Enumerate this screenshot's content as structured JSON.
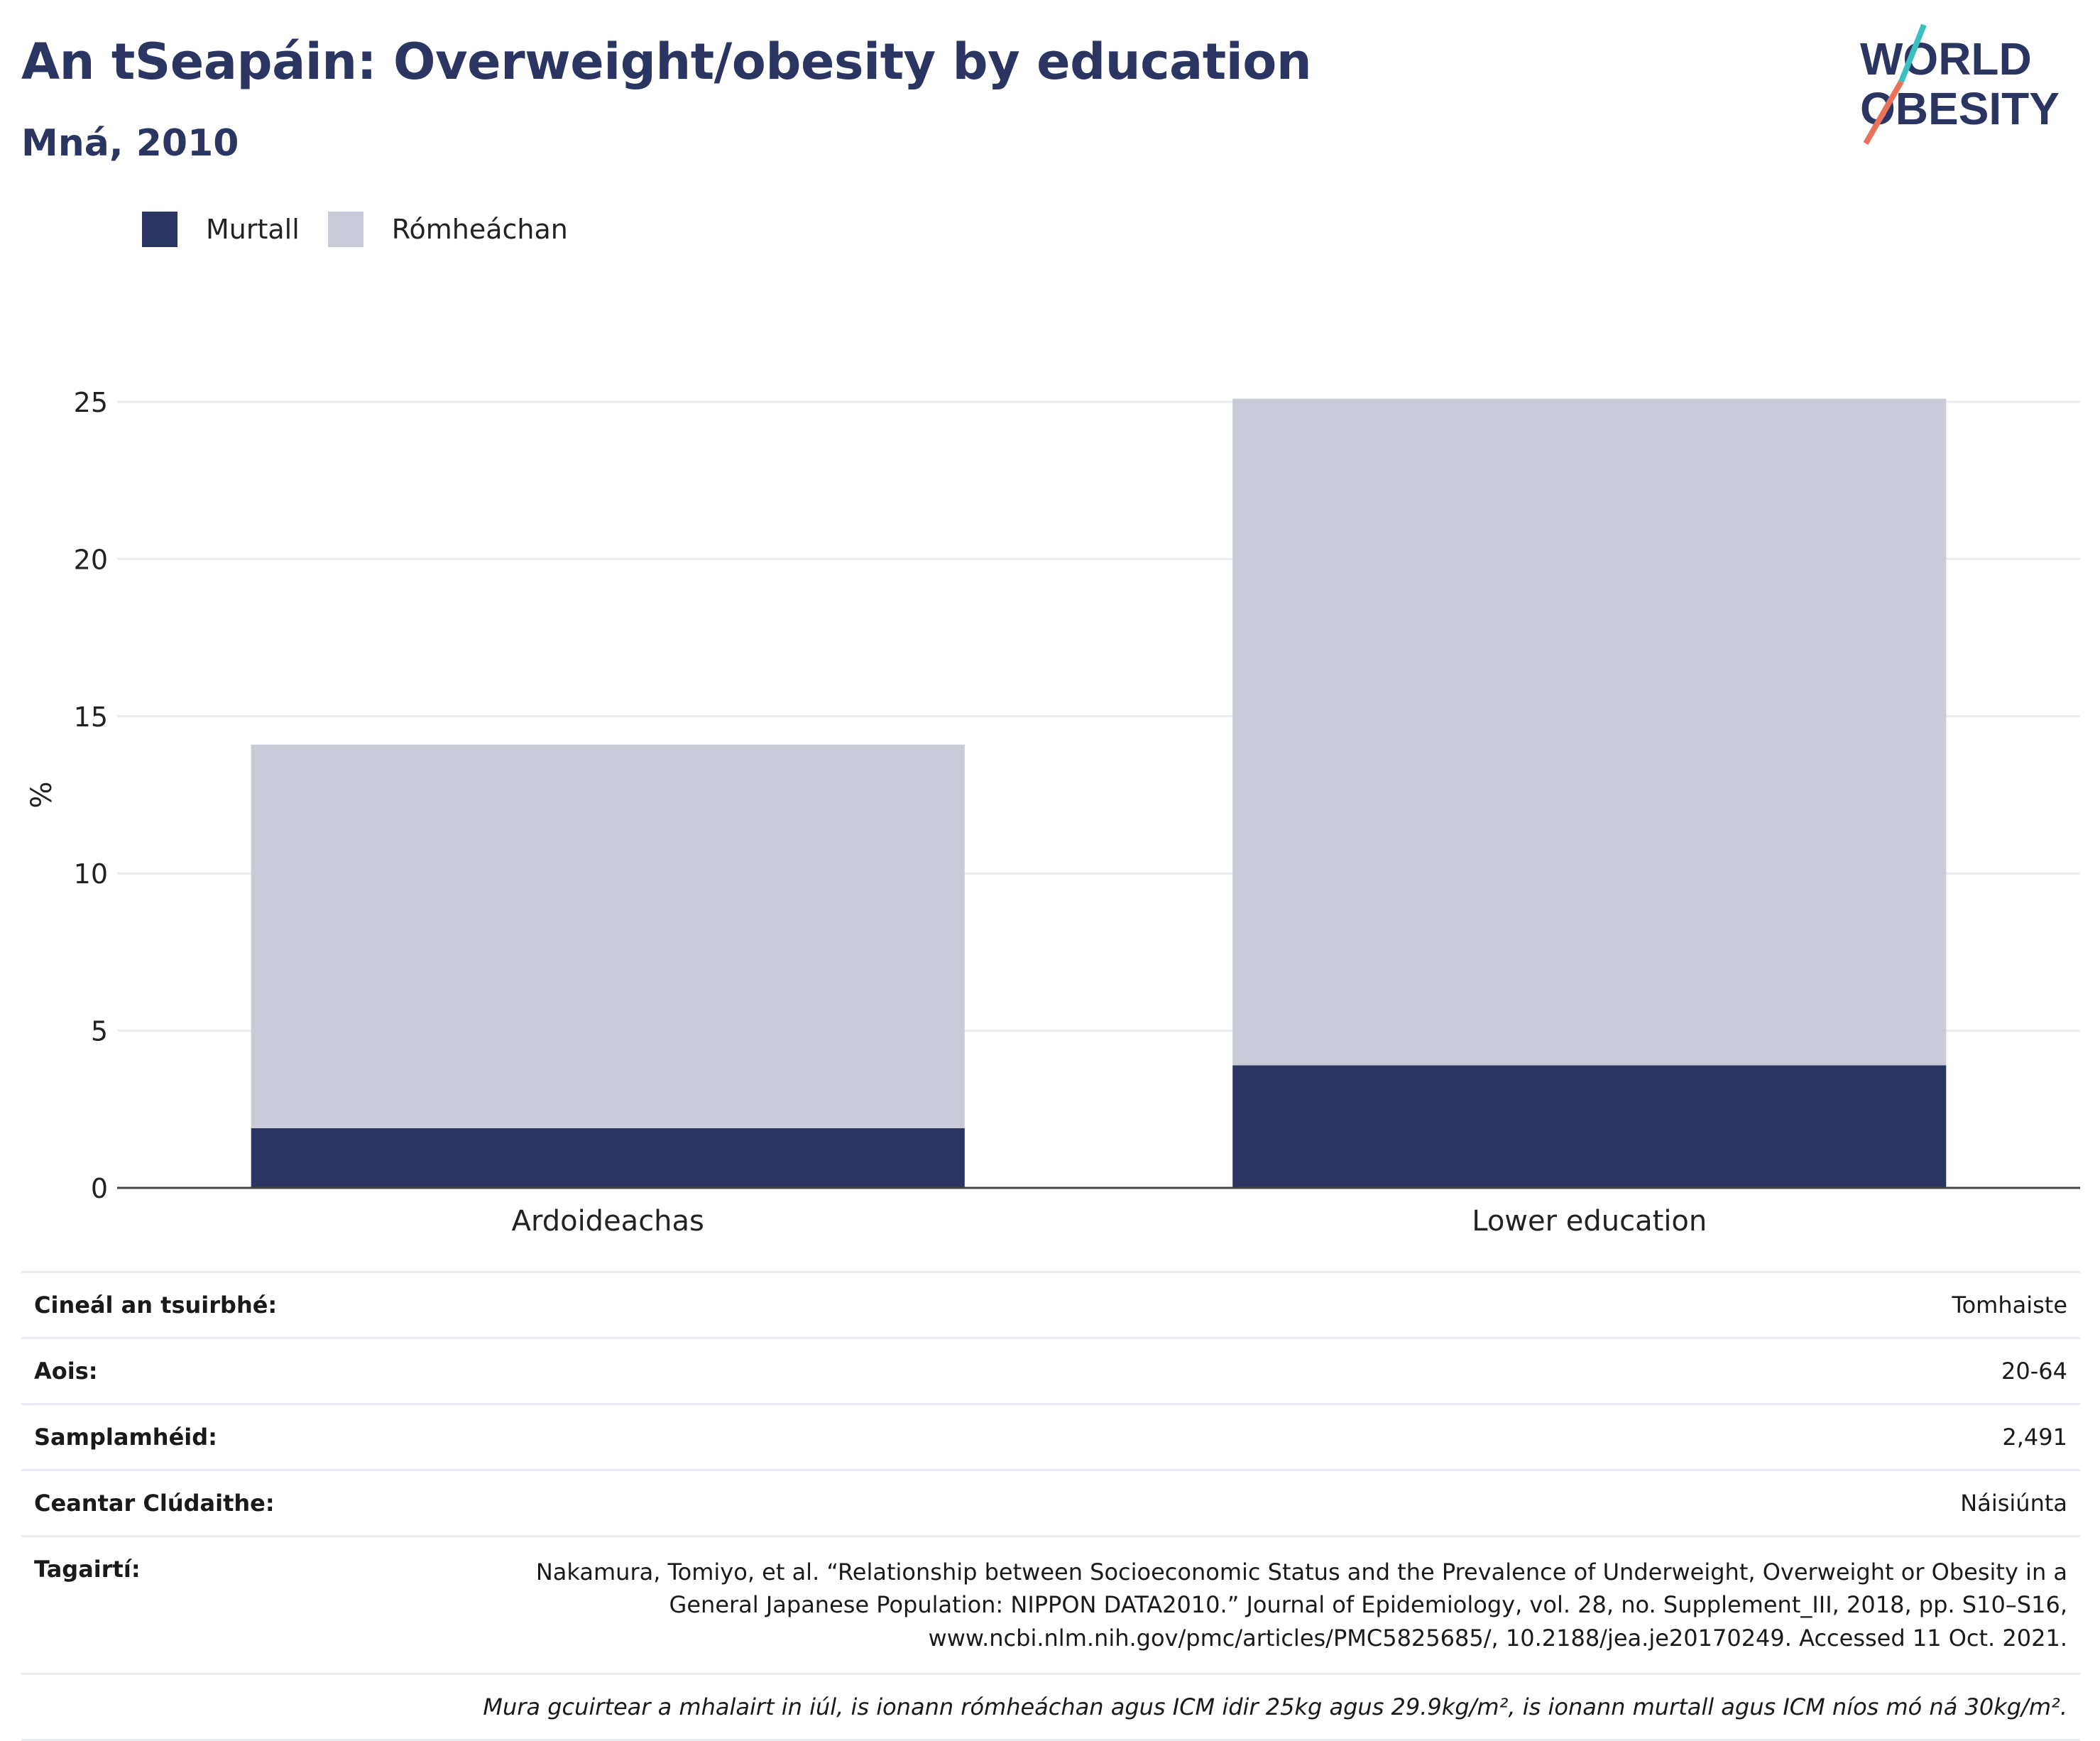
{
  "title": "An tSeapáin: Overweight/obesity by education",
  "subtitle": "Mná, 2010",
  "logo": {
    "line1": "WORLD",
    "line2": "OBESITY",
    "colors": [
      "#2a3562",
      "#e8735a",
      "#3bbfbf"
    ]
  },
  "legend": [
    {
      "label": "Murtall",
      "color": "#2a3562"
    },
    {
      "label": "Rómheáchan",
      "color": "#c9ccd8"
    }
  ],
  "chart_data": {
    "type": "bar",
    "stacked": true,
    "categories": [
      "Ardoideachas",
      "Lower education"
    ],
    "series": [
      {
        "name": "Murtall",
        "values": [
          1.9,
          3.9
        ],
        "color": "#2a3562"
      },
      {
        "name": "Rómheáchan",
        "values": [
          12.2,
          21.2
        ],
        "color": "#c9ccd8"
      }
    ],
    "ylabel": "%",
    "ylim": [
      0,
      25
    ],
    "yticks": [
      0,
      5,
      10,
      15,
      20,
      25
    ],
    "grid": true,
    "legend_position": "top-left"
  },
  "info": {
    "rows": [
      {
        "label": "Cineál an tsuirbhé:",
        "value": "Tomhaiste"
      },
      {
        "label": "Aois:",
        "value": "20-64"
      },
      {
        "label": "Samplamhéid:",
        "value": "2,491"
      },
      {
        "label": "Ceantar Clúdaithe:",
        "value": "Náisiúnta"
      }
    ],
    "references_label": "Tagairtí:",
    "references_lines": [
      "Nakamura, Tomiyo, et al. “Relationship between Socioeconomic Status and the Prevalence of Underweight, Overweight or Obesity in a",
      "General Japanese Population: NIPPON DATA2010.” Journal of Epidemiology, vol. 28, no. Supplement_III, 2018, pp. S10–S16,",
      "www.ncbi.nlm.nih.gov/pmc/articles/PMC5825685/, 10.2188/jea.je20170249. Accessed 11 Oct. 2021."
    ],
    "note": "Mura gcuirtear a mhalairt in iúl, is ionann rómheáchan agus ICM idir 25kg agus 29.9kg/m², is ionann murtall agus ICM níos mó ná 30kg/m²."
  }
}
